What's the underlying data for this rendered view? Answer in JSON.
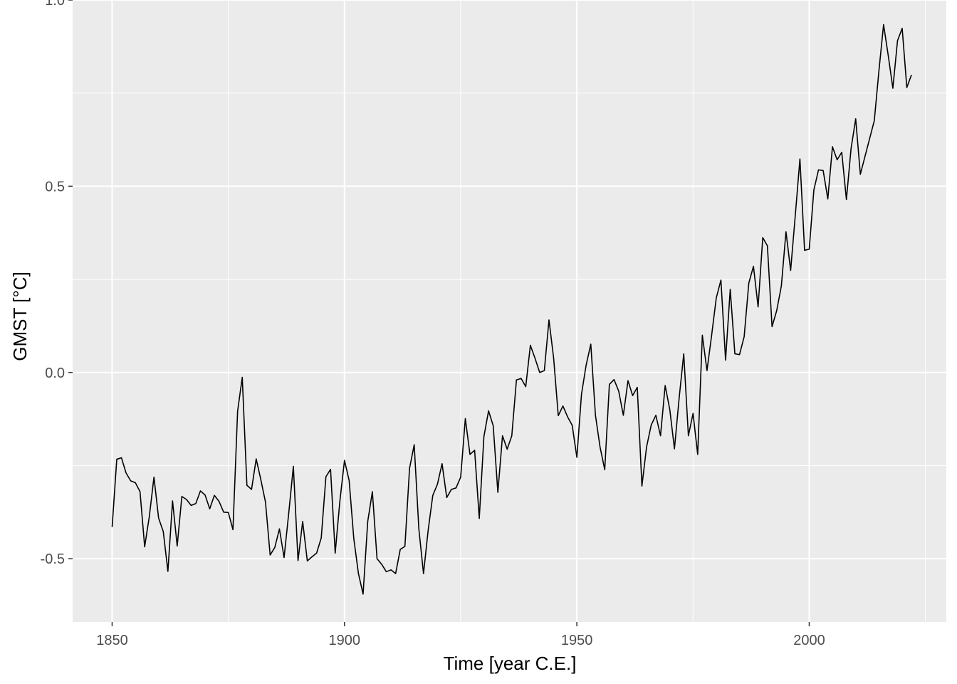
{
  "chart_data": {
    "type": "line",
    "title": "",
    "xlabel": "Time [year C.E.]",
    "ylabel": "GMST [°C]",
    "xlim": [
      1841.5,
      2029.5
    ],
    "ylim": [
      -0.67,
      1.0
    ],
    "x_ticks": [
      1850,
      1900,
      1950,
      2000
    ],
    "x_tick_labels": [
      "1850",
      "1900",
      "1950",
      "2000"
    ],
    "y_ticks": [
      -0.5,
      0.0,
      0.5,
      1.0
    ],
    "y_tick_labels": [
      "-0.5",
      "0.0",
      "0.5",
      "1.0"
    ],
    "grid": true,
    "legend": "none",
    "colors": {
      "panel": "#ebebeb",
      "grid": "#ffffff",
      "line": "#000000",
      "tick_text": "#4d4d4d",
      "title_text": "#000000"
    },
    "series": [
      {
        "x": [
          1850,
          1851,
          1852,
          1853,
          1854,
          1855,
          1856,
          1857,
          1858,
          1859,
          1860,
          1861,
          1862,
          1863,
          1864,
          1865,
          1866,
          1867,
          1868,
          1869,
          1870,
          1871,
          1872,
          1873,
          1874,
          1875,
          1876,
          1877,
          1878,
          1879,
          1880,
          1881,
          1882,
          1883,
          1884,
          1885,
          1886,
          1887,
          1888,
          1889,
          1890,
          1891,
          1892,
          1893,
          1894,
          1895,
          1896,
          1897,
          1898,
          1899,
          1900,
          1901,
          1902,
          1903,
          1904,
          1905,
          1906,
          1907,
          1908,
          1909,
          1910,
          1911,
          1912,
          1913,
          1914,
          1915,
          1916,
          1917,
          1918,
          1919,
          1920,
          1921,
          1922,
          1923,
          1924,
          1925,
          1926,
          1927,
          1928,
          1929,
          1930,
          1931,
          1932,
          1933,
          1934,
          1935,
          1936,
          1937,
          1938,
          1939,
          1940,
          1941,
          1942,
          1943,
          1944,
          1945,
          1946,
          1947,
          1948,
          1949,
          1950,
          1951,
          1952,
          1953,
          1954,
          1955,
          1956,
          1957,
          1958,
          1959,
          1960,
          1961,
          1962,
          1963,
          1964,
          1965,
          1966,
          1967,
          1968,
          1969,
          1970,
          1971,
          1972,
          1973,
          1974,
          1975,
          1976,
          1977,
          1978,
          1979,
          1980,
          1981,
          1982,
          1983,
          1984,
          1985,
          1986,
          1987,
          1988,
          1989,
          1990,
          1991,
          1992,
          1993,
          1994,
          1995,
          1996,
          1997,
          1998,
          1999,
          2000,
          2001,
          2002,
          2003,
          2004,
          2005,
          2006,
          2007,
          2008,
          2009,
          2010,
          2011,
          2012,
          2013,
          2014,
          2015,
          2016,
          2017,
          2018,
          2019,
          2020,
          2021,
          2022
        ],
        "y": [
          -0.415,
          -0.233,
          -0.229,
          -0.27,
          -0.291,
          -0.296,
          -0.32,
          -0.468,
          -0.387,
          -0.281,
          -0.391,
          -0.427,
          -0.534,
          -0.345,
          -0.466,
          -0.333,
          -0.341,
          -0.357,
          -0.352,
          -0.318,
          -0.329,
          -0.366,
          -0.33,
          -0.346,
          -0.375,
          -0.376,
          -0.422,
          -0.104,
          -0.013,
          -0.303,
          -0.314,
          -0.232,
          -0.288,
          -0.348,
          -0.49,
          -0.47,
          -0.42,
          -0.497,
          -0.378,
          -0.252,
          -0.505,
          -0.4,
          -0.506,
          -0.495,
          -0.485,
          -0.444,
          -0.28,
          -0.26,
          -0.485,
          -0.346,
          -0.236,
          -0.29,
          -0.446,
          -0.54,
          -0.595,
          -0.4,
          -0.32,
          -0.5,
          -0.515,
          -0.535,
          -0.53,
          -0.54,
          -0.475,
          -0.467,
          -0.257,
          -0.194,
          -0.42,
          -0.54,
          -0.424,
          -0.33,
          -0.3,
          -0.245,
          -0.336,
          -0.314,
          -0.31,
          -0.281,
          -0.124,
          -0.22,
          -0.209,
          -0.392,
          -0.172,
          -0.103,
          -0.143,
          -0.322,
          -0.17,
          -0.206,
          -0.17,
          -0.02,
          -0.016,
          -0.038,
          0.073,
          0.038,
          0.0,
          0.005,
          0.141,
          0.039,
          -0.116,
          -0.09,
          -0.119,
          -0.142,
          -0.228,
          -0.058,
          0.02,
          0.076,
          -0.115,
          -0.201,
          -0.261,
          -0.032,
          -0.019,
          -0.05,
          -0.115,
          -0.022,
          -0.062,
          -0.04,
          -0.305,
          -0.2,
          -0.141,
          -0.115,
          -0.17,
          -0.035,
          -0.1,
          -0.205,
          -0.07,
          0.05,
          -0.17,
          -0.11,
          -0.22,
          0.1,
          0.005,
          0.1,
          0.2,
          0.248,
          0.033,
          0.223,
          0.05,
          0.048,
          0.096,
          0.24,
          0.285,
          0.176,
          0.362,
          0.34,
          0.123,
          0.166,
          0.232,
          0.378,
          0.274,
          0.422,
          0.573,
          0.328,
          0.331,
          0.49,
          0.544,
          0.542,
          0.466,
          0.606,
          0.571,
          0.591,
          0.464,
          0.601,
          0.681,
          0.532,
          0.58,
          0.628,
          0.676,
          0.81,
          0.934,
          0.851,
          0.763,
          0.891,
          0.924,
          0.765,
          0.799
        ]
      }
    ]
  }
}
